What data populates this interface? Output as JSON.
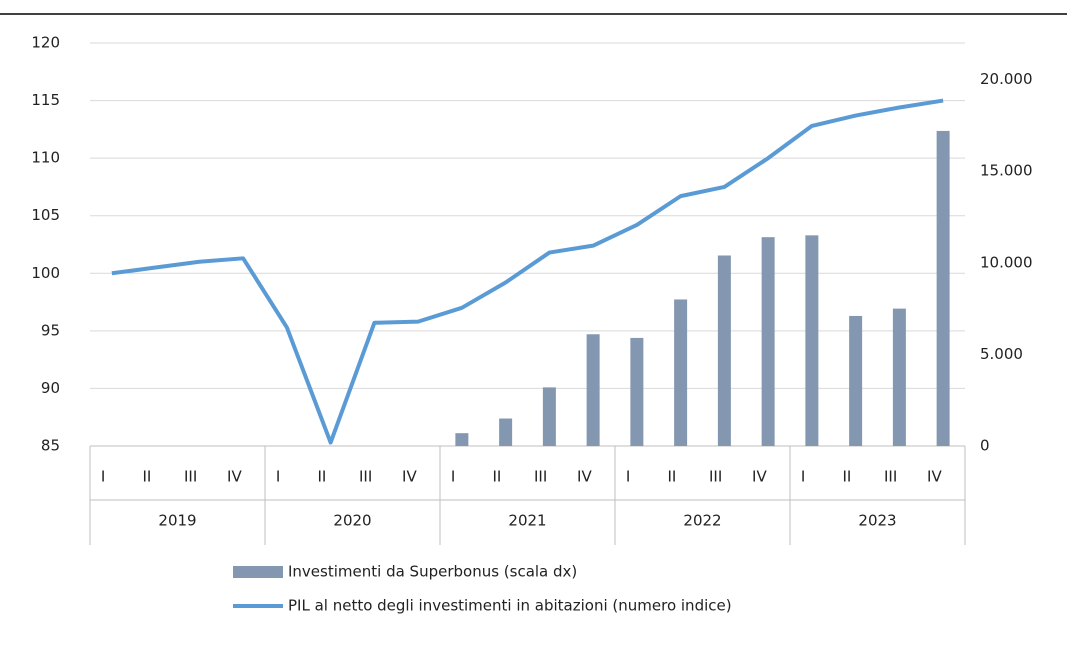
{
  "chart_data": {
    "type": "bar_line",
    "categories": [
      "I",
      "II",
      "III",
      "IV",
      "I",
      "II",
      "III",
      "IV",
      "I",
      "II",
      "III",
      "IV",
      "I",
      "II",
      "III",
      "IV",
      "I",
      "II",
      "III",
      "IV"
    ],
    "years": [
      "2019",
      "2020",
      "2021",
      "2022",
      "2023"
    ],
    "series": [
      {
        "name": "Investimenti da Superbonus  (scala dx)",
        "type": "bar",
        "axis": "y2",
        "color": "#8497B0",
        "values": [
          null,
          null,
          null,
          null,
          null,
          null,
          null,
          null,
          700,
          1500,
          3200,
          6100,
          5900,
          8000,
          10400,
          11400,
          11500,
          7100,
          7500,
          17200
        ]
      },
      {
        "name": "PIL al netto degli investimenti in abitazioni (numero indice)",
        "type": "line",
        "axis": "y",
        "color": "#5B9BD5",
        "values": [
          100,
          100.5,
          101,
          101.3,
          95.3,
          85.3,
          95.7,
          95.8,
          97,
          99.2,
          101.8,
          102.4,
          104.2,
          106.7,
          107.5,
          110,
          112.8,
          113.7,
          114.4,
          115
        ]
      }
    ],
    "ylim": [
      85,
      120
    ],
    "yticks": [
      85,
      90,
      95,
      100,
      105,
      110,
      115,
      120
    ],
    "y2lim": [
      0,
      22000
    ],
    "y2ticks": [
      0,
      {
        "value": 5000,
        "label": "5.000"
      },
      {
        "value": 10000,
        "label": "10.000"
      },
      {
        "value": 15000,
        "label": "15.000"
      },
      {
        "value": 20000,
        "label": "20.000"
      }
    ],
    "grid": true
  }
}
